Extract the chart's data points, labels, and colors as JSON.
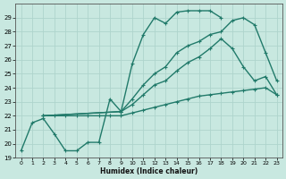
{
  "xlabel": "Humidex (Indice chaleur)",
  "ylabel": "",
  "xlim": [
    -0.5,
    23.5
  ],
  "ylim": [
    19,
    30
  ],
  "yticks": [
    19,
    20,
    21,
    22,
    23,
    24,
    25,
    26,
    27,
    28,
    29
  ],
  "xticks": [
    0,
    1,
    2,
    3,
    4,
    5,
    6,
    7,
    8,
    9,
    10,
    11,
    12,
    13,
    14,
    15,
    16,
    17,
    18,
    19,
    20,
    21,
    22,
    23
  ],
  "background_color": "#c8e8e0",
  "grid_color": "#aed4cc",
  "line_color": "#217a6a",
  "lines": [
    {
      "x": [
        0,
        1,
        2,
        3,
        4,
        5,
        6,
        7,
        8,
        9,
        10,
        11,
        12,
        13,
        14,
        15,
        16,
        17,
        18,
        19,
        20,
        21
      ],
      "y": [
        19.5,
        21.5,
        21.8,
        20.7,
        19.5,
        19.5,
        20.1,
        20.1,
        23.2,
        22.3,
        25.7,
        27.8,
        29.0,
        28.6,
        29.4,
        29.5,
        29.5,
        29.5,
        29.0,
        null,
        null,
        null
      ],
      "marker": true,
      "linewidth": 1.0
    },
    {
      "x": [
        2,
        3,
        4,
        5,
        6,
        7,
        8,
        9,
        10,
        11,
        12,
        13,
        14,
        15,
        16,
        17,
        18,
        19,
        20,
        21,
        22,
        23
      ],
      "y": [
        22.0,
        22.0,
        22.0,
        22.0,
        22.0,
        22.0,
        22.0,
        22.0,
        22.2,
        22.4,
        22.6,
        22.8,
        23.0,
        23.2,
        23.4,
        23.5,
        23.6,
        23.7,
        23.8,
        23.9,
        24.0,
        23.5
      ],
      "marker": true,
      "linewidth": 1.0
    },
    {
      "x": [
        2,
        9,
        10,
        11,
        12,
        13,
        14,
        15,
        16,
        17,
        18,
        19,
        20,
        21,
        22,
        23
      ],
      "y": [
        22.0,
        22.3,
        23.2,
        24.2,
        25.0,
        25.5,
        26.5,
        27.0,
        27.3,
        27.8,
        28.0,
        28.8,
        29.0,
        28.5,
        26.5,
        24.5
      ],
      "marker": true,
      "linewidth": 1.0
    },
    {
      "x": [
        2,
        9,
        10,
        11,
        12,
        13,
        14,
        15,
        16,
        17,
        18,
        19,
        20,
        21,
        22,
        23
      ],
      "y": [
        22.0,
        22.3,
        22.8,
        23.5,
        24.2,
        24.5,
        25.2,
        25.8,
        26.2,
        26.8,
        27.5,
        26.8,
        25.5,
        24.5,
        24.8,
        23.5
      ],
      "marker": true,
      "linewidth": 1.0
    }
  ]
}
